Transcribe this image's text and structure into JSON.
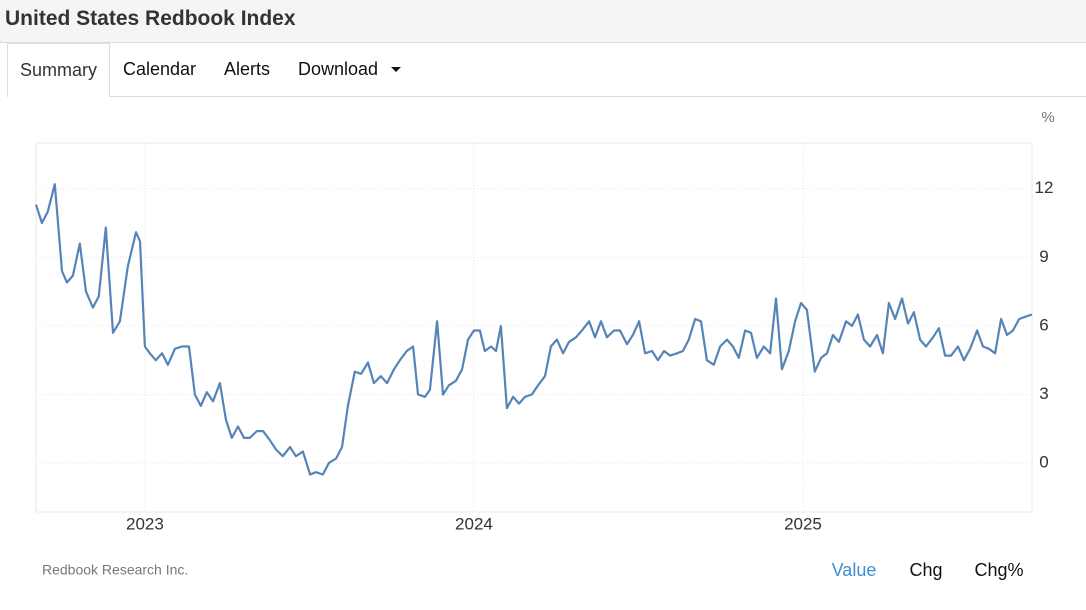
{
  "header": {
    "title": "United States Redbook Index"
  },
  "tabs": [
    "Summary",
    "Calendar",
    "Alerts",
    "Download"
  ],
  "source": "Redbook Research Inc.",
  "buttons": [
    "Value",
    "Chg",
    "Chg%"
  ],
  "chart_data": {
    "type": "line",
    "ylabel": "%",
    "x": [
      2022.669,
      2022.687,
      2022.705,
      2022.726,
      2022.748,
      2022.763,
      2022.781,
      2022.802,
      2022.821,
      2022.842,
      2022.86,
      2022.881,
      2022.903,
      2022.924,
      2022.948,
      2022.973,
      2022.985,
      2023.0,
      2023.015,
      2023.033,
      2023.052,
      2023.07,
      2023.091,
      2023.112,
      2023.134,
      2023.152,
      2023.17,
      2023.188,
      2023.207,
      2023.228,
      2023.246,
      2023.264,
      2023.283,
      2023.301,
      2023.319,
      2023.34,
      2023.359,
      2023.38,
      2023.398,
      2023.419,
      2023.441,
      2023.459,
      2023.48,
      2023.502,
      2023.52,
      2023.541,
      2023.559,
      2023.581,
      2023.599,
      2023.617,
      2023.638,
      2023.657,
      2023.678,
      2023.696,
      2023.717,
      2023.736,
      2023.757,
      2023.775,
      2023.796,
      2023.815,
      2023.83,
      2023.851,
      2023.866,
      2023.888,
      2023.906,
      2023.924,
      2023.945,
      2023.964,
      2023.982,
      2024.0,
      2024.018,
      2024.033,
      2024.052,
      2024.067,
      2024.082,
      2024.1,
      2024.119,
      2024.137,
      2024.155,
      2024.176,
      2024.195,
      2024.216,
      2024.234,
      2024.252,
      2024.271,
      2024.289,
      2024.31,
      2024.328,
      2024.35,
      2024.368,
      2024.386,
      2024.404,
      2024.426,
      2024.444,
      2024.465,
      2024.483,
      2024.502,
      2024.52,
      2024.541,
      2024.559,
      2024.578,
      2024.596,
      2024.617,
      2024.635,
      2024.653,
      2024.672,
      2024.69,
      2024.708,
      2024.729,
      2024.748,
      2024.769,
      2024.787,
      2024.805,
      2024.824,
      2024.842,
      2024.86,
      2024.881,
      2024.9,
      2024.918,
      2024.936,
      2024.957,
      2024.976,
      2024.994,
      2025.012,
      2025.036,
      2025.055,
      2025.073,
      2025.091,
      2025.109,
      2025.131,
      2025.149,
      2025.167,
      2025.185,
      2025.204,
      2025.225,
      2025.243,
      2025.261,
      2025.28,
      2025.301,
      2025.319,
      2025.337,
      2025.356,
      2025.374,
      2025.395,
      2025.413,
      2025.432,
      2025.45,
      2025.471,
      2025.489,
      2025.508,
      2025.529,
      2025.547,
      2025.565,
      2025.584,
      2025.602,
      2025.62,
      2025.638,
      2025.657,
      2025.675,
      2025.696
    ],
    "series": [
      {
        "name": "Redbook Index",
        "color": "#5584b8",
        "values": [
          11.3,
          10.5,
          11.0,
          12.2,
          8.4,
          7.9,
          8.2,
          9.6,
          7.5,
          6.8,
          7.3,
          10.3,
          5.7,
          6.2,
          8.6,
          10.1,
          9.7,
          5.1,
          4.8,
          4.5,
          4.8,
          4.3,
          5.0,
          5.1,
          5.1,
          3.0,
          2.5,
          3.1,
          2.7,
          3.5,
          1.9,
          1.1,
          1.6,
          1.1,
          1.1,
          1.4,
          1.4,
          1.0,
          0.6,
          0.3,
          0.7,
          0.3,
          0.5,
          -0.5,
          -0.4,
          -0.5,
          0,
          0.2,
          0.7,
          2.5,
          4.0,
          3.9,
          4.4,
          3.5,
          3.8,
          3.5,
          4.1,
          4.5,
          4.9,
          5.1,
          3.0,
          2.9,
          3.2,
          6.2,
          3.0,
          3.4,
          3.6,
          4.1,
          5.4,
          5.8,
          5.8,
          4.9,
          5.1,
          4.9,
          6.0,
          2.4,
          2.9,
          2.6,
          2.9,
          3.0,
          3.4,
          3.8,
          5.1,
          5.4,
          4.8,
          5.3,
          5.5,
          5.8,
          6.2,
          5.5,
          6.2,
          5.5,
          5.8,
          5.8,
          5.2,
          5.6,
          6.2,
          4.8,
          4.9,
          4.5,
          4.9,
          4.7,
          4.8,
          4.9,
          5.4,
          6.3,
          6.2,
          4.5,
          4.3,
          5.1,
          5.4,
          5.1,
          4.6,
          5.8,
          5.7,
          4.6,
          5.1,
          4.8,
          7.2,
          4.1,
          4.9,
          6.2,
          7.0,
          6.7,
          4.0,
          4.6,
          4.8,
          5.6,
          5.3,
          6.2,
          6.0,
          6.5,
          5.4,
          5.1,
          5.6,
          4.8,
          7.0,
          6.3,
          7.2,
          6.1,
          6.6,
          5.4,
          5.1,
          5.5,
          5.9,
          4.7,
          4.7,
          5.1,
          4.5,
          5.0,
          5.8,
          5.1,
          5.0,
          4.8,
          6.3,
          5.6,
          5.8,
          6.3,
          6.4,
          6.5
        ]
      }
    ],
    "xlim": [
      2022.669,
      2025.696
    ],
    "xticks": [
      2023,
      2024,
      2025
    ],
    "ylim": [
      -2.14,
      14
    ],
    "yticks": [
      0,
      3,
      6,
      9,
      12
    ],
    "grid": true
  }
}
